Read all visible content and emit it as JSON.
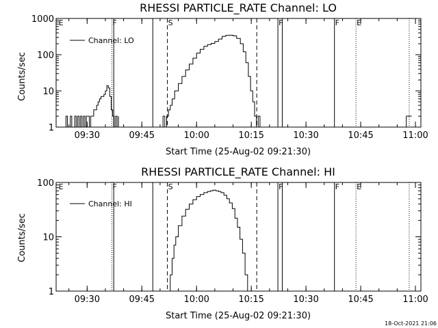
{
  "page": {
    "timestamp": "18-Oct-2021 21:06"
  },
  "chart_data": [
    {
      "type": "line",
      "title": "RHESSI PARTICLE_RATE Channel: LO",
      "xlabel": "Start Time (25-Aug-02 09:21:30)",
      "ylabel": "Counts/sec",
      "x_unit": "minutes after 09:21:30",
      "xlim": [
        0,
        100
      ],
      "ylim": [
        1,
        1000
      ],
      "yscale": "log",
      "xticks": [
        {
          "value": 8.5,
          "label": "09:30"
        },
        {
          "value": 23.5,
          "label": "09:45"
        },
        {
          "value": 38.5,
          "label": "10:00"
        },
        {
          "value": 53.5,
          "label": "10:15"
        },
        {
          "value": 68.5,
          "label": "10:30"
        },
        {
          "value": 83.5,
          "label": "10:45"
        },
        {
          "value": 98.5,
          "label": "11:00"
        }
      ],
      "yticks": [
        {
          "value": 1,
          "label": "1"
        },
        {
          "value": 10,
          "label": "10"
        },
        {
          "value": 100,
          "label": "100"
        },
        {
          "value": 1000,
          "label": "1000"
        }
      ],
      "legend": {
        "label": "Channel: LO",
        "position": "top-left"
      },
      "markers": [
        {
          "x": 0.5,
          "label": "E",
          "style": "none"
        },
        {
          "x": 15.3,
          "label": "F",
          "style": "dotted"
        },
        {
          "x": 15.8,
          "label": "",
          "style": "solid"
        },
        {
          "x": 26.5,
          "label": "",
          "style": "solid"
        },
        {
          "x": 30.5,
          "label": "S",
          "style": "dashed"
        },
        {
          "x": 55.0,
          "label": "",
          "style": "dashed"
        },
        {
          "x": 60.8,
          "label": "F",
          "style": "solid"
        },
        {
          "x": 62.0,
          "label": "",
          "style": "solid"
        },
        {
          "x": 76.3,
          "label": "F",
          "style": "solid"
        },
        {
          "x": 82.2,
          "label": "E",
          "style": "dotted"
        },
        {
          "x": 96.8,
          "label": "",
          "style": "dotted"
        }
      ],
      "series": [
        {
          "x": [
            2.3,
            2.7,
            3.1,
            3.5,
            3.9,
            4.3,
            4.7,
            5.1,
            5.5,
            5.9,
            6.3,
            6.7,
            7.1,
            7.5,
            7.9,
            8.3,
            8.7,
            9.1,
            9.5,
            9.9,
            10.3,
            10.7,
            11.1,
            11.5,
            11.9,
            12.3,
            12.7,
            13.1,
            13.5,
            13.9,
            14.3,
            14.7,
            15.1,
            15.5,
            15.9,
            16.3,
            16.7,
            17.1
          ],
          "y": [
            1,
            2,
            1,
            1,
            2,
            1,
            1,
            2,
            1,
            2,
            1,
            2,
            1,
            2,
            1,
            2,
            2,
            1,
            2,
            2,
            3,
            3,
            4,
            5,
            6,
            7,
            7,
            8,
            10,
            14,
            12,
            7,
            3,
            2,
            1,
            2,
            1,
            2
          ]
        },
        {
          "x": [
            28.8,
            29.3,
            29.8,
            30.3,
            30.8,
            31.3,
            31.8,
            32.5,
            33.5,
            34.5,
            35.5,
            36.5,
            37.5,
            38.5,
            39.5,
            40.5,
            41.5,
            42.5,
            43.5,
            44.5,
            45.5,
            46.5,
            47.5,
            48.5,
            49.5,
            50.5,
            51.3,
            52.0,
            52.7,
            53.3,
            53.9,
            54.4,
            54.9,
            55.4,
            55.9
          ],
          "y": [
            1,
            2,
            1,
            2,
            3,
            4,
            6,
            10,
            16,
            25,
            38,
            55,
            80,
            110,
            140,
            170,
            190,
            205,
            230,
            270,
            320,
            340,
            345,
            330,
            280,
            200,
            120,
            60,
            25,
            10,
            5,
            2,
            1,
            2,
            1
          ]
        },
        {
          "x": [
            95.5,
            96.0,
            97.5
          ],
          "y": [
            1,
            2,
            2
          ]
        }
      ]
    },
    {
      "type": "line",
      "title": "RHESSI PARTICLE_RATE Channel: HI",
      "xlabel": "Start Time (25-Aug-02 09:21:30)",
      "ylabel": "Counts/sec",
      "x_unit": "minutes after 09:21:30",
      "xlim": [
        0,
        100
      ],
      "ylim": [
        1,
        100
      ],
      "yscale": "log",
      "xticks": [
        {
          "value": 8.5,
          "label": "09:30"
        },
        {
          "value": 23.5,
          "label": "09:45"
        },
        {
          "value": 38.5,
          "label": "10:00"
        },
        {
          "value": 53.5,
          "label": "10:15"
        },
        {
          "value": 68.5,
          "label": "10:30"
        },
        {
          "value": 83.5,
          "label": "10:45"
        },
        {
          "value": 98.5,
          "label": "11:00"
        }
      ],
      "yticks": [
        {
          "value": 1,
          "label": "1"
        },
        {
          "value": 10,
          "label": "10"
        },
        {
          "value": 100,
          "label": "100"
        }
      ],
      "legend": {
        "label": "Channel: HI",
        "position": "top-left"
      },
      "markers": [
        {
          "x": 0.5,
          "label": "E",
          "style": "none"
        },
        {
          "x": 15.3,
          "label": "F",
          "style": "dotted"
        },
        {
          "x": 15.8,
          "label": "",
          "style": "solid"
        },
        {
          "x": 26.5,
          "label": "",
          "style": "solid"
        },
        {
          "x": 30.5,
          "label": "S",
          "style": "dashed"
        },
        {
          "x": 55.0,
          "label": "",
          "style": "dashed"
        },
        {
          "x": 60.8,
          "label": "F",
          "style": "solid"
        },
        {
          "x": 62.0,
          "label": "",
          "style": "solid"
        },
        {
          "x": 76.3,
          "label": "F",
          "style": "solid"
        },
        {
          "x": 82.2,
          "label": "E",
          "style": "dotted"
        },
        {
          "x": 96.8,
          "label": "",
          "style": "dotted"
        }
      ],
      "series": [
        {
          "x": [
            30.8,
            31.3,
            31.8,
            32.3,
            32.8,
            33.5,
            34.5,
            35.5,
            36.5,
            37.5,
            38.5,
            39.5,
            40.5,
            41.5,
            42.3,
            43.0,
            43.8,
            44.5,
            45.2,
            46.0,
            46.8,
            47.5,
            48.3,
            49.0,
            49.7,
            50.4,
            51.1,
            51.8,
            52.5
          ],
          "y": [
            1,
            2,
            4,
            7,
            10,
            16,
            24,
            32,
            40,
            48,
            55,
            60,
            65,
            68,
            70,
            72,
            70,
            68,
            65,
            58,
            50,
            42,
            33,
            22,
            15,
            9,
            5,
            2,
            1
          ]
        }
      ]
    }
  ]
}
